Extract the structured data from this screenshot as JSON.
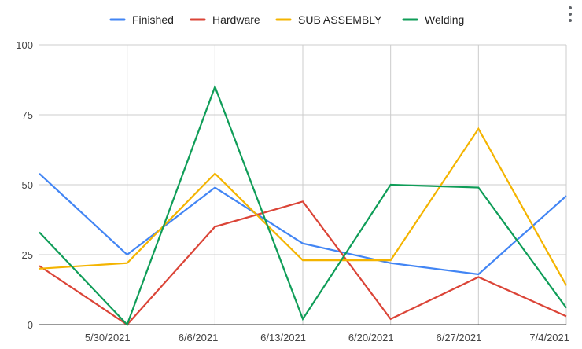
{
  "colors": {
    "Finished": "#4285f4",
    "Hardware": "#db4437",
    "SUB ASSEMBLY": "#f4b400",
    "Welding": "#0f9d58",
    "grid": "#cccccc",
    "axis": "#333333"
  },
  "menu": {
    "icon": "more-vert-icon"
  },
  "chart_data": {
    "type": "line",
    "legend_position": "top",
    "grid": true,
    "ylim": [
      0,
      100
    ],
    "y_ticks": [
      "0",
      "25",
      "50",
      "75",
      "100"
    ],
    "x_ticks": [
      "5/30/2021",
      "6/6/2021",
      "6/13/2021",
      "6/20/2021",
      "6/27/2021",
      "7/4/2021"
    ],
    "x_dates": [
      "5/23/2021",
      "5/30/2021",
      "6/6/2021",
      "6/13/2021",
      "6/20/2021",
      "6/27/2021",
      "7/4/2021"
    ],
    "series": [
      {
        "name": "Finished",
        "values": [
          54,
          25,
          49,
          29,
          22,
          18,
          46
        ]
      },
      {
        "name": "Hardware",
        "values": [
          21,
          0,
          35,
          44,
          2,
          17,
          3
        ]
      },
      {
        "name": "SUB ASSEMBLY",
        "values": [
          20,
          22,
          54,
          23,
          23,
          70,
          14
        ]
      },
      {
        "name": "Welding",
        "values": [
          33,
          0,
          85,
          2,
          50,
          49,
          6
        ]
      }
    ]
  }
}
